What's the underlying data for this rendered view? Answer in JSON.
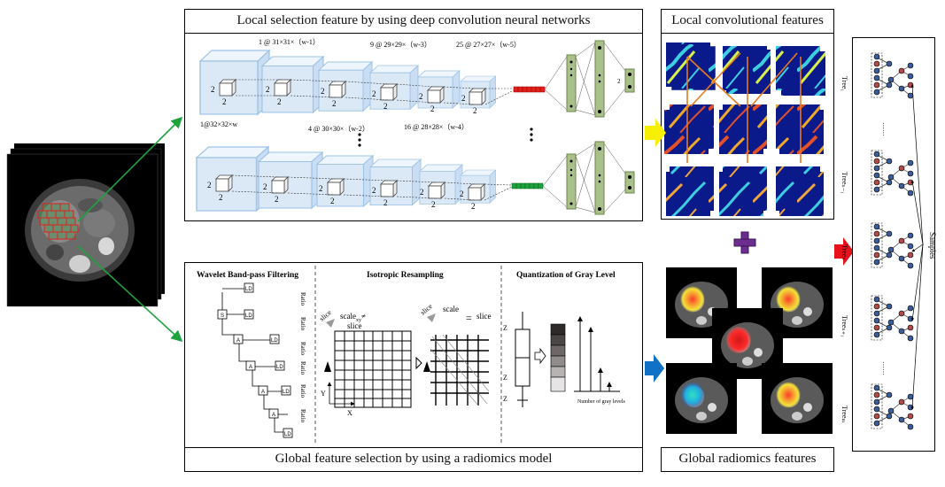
{
  "cnn_panel": {
    "title": "Local selection feature by using deep convolution neural networks",
    "row1_top_labels": [
      "1 @ 31×31×（w-1）",
      "9 @ 29×29×（w-3）",
      "25 @ 27×27×（w-5）"
    ],
    "row1_bottom_labels": [
      "1@32×32×w",
      "4 @ 30×30×（w-2）",
      "16 @ 28×28×（w-4）"
    ],
    "kernel_label": "2",
    "output_label": "2"
  },
  "radiomics_panel": {
    "title": "Global feature selection by using a radiomics model",
    "sections": [
      "Wavelet Band-pass Filtering",
      "Isotropic Resampling",
      "Quantization of Gray Level"
    ],
    "ratio_label": "Ratio",
    "wavelet_nodes": [
      "S",
      "A",
      "A",
      "A",
      "A",
      "LD",
      "LD",
      "LD",
      "LD",
      "LD",
      "LD"
    ],
    "resampling": {
      "scale_neq": "scale",
      "neq_sub": "xy",
      "neq_symbol": "≠",
      "slice_z": "slice",
      "slice_label": "slice",
      "eq_symbol": "=",
      "axis_x": "X",
      "axis_y": "Y"
    },
    "quantization": {
      "z_max": "Z",
      "z_i": "Z",
      "z_min": "Z",
      "hist_label": "Number of gray levels"
    }
  },
  "local_features": {
    "title": "Local convolutional features"
  },
  "global_features": {
    "title": "Global radiomics features"
  },
  "forest": {
    "tree_labels": [
      "Tree₁",
      "Treeₙ₋₁",
      "Treeₙ",
      "Treeₙ₊₁",
      "Treeₘ"
    ],
    "samples_label": "Samples",
    "ellipsis": "……"
  },
  "colors": {
    "cube_face": "#dbe9f7",
    "cube_edge": "#9dc3e6",
    "arrow_green": "#1ea23c",
    "arrow_yellow": "#f6f000",
    "arrow_blue": "#0f72c5",
    "arrow_red": "#e8101a",
    "plus_purple": "#6b2d8e",
    "fc_green": "#a9c08a",
    "heat_blue": "#0a1a8a",
    "node_blue": "#3a5c98",
    "node_red": "#b24a4a"
  }
}
